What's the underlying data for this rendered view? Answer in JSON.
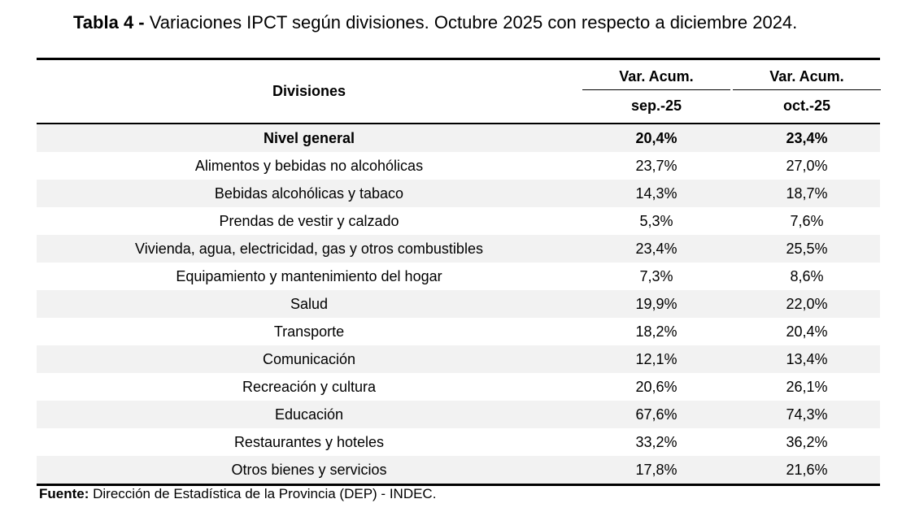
{
  "title": {
    "prefix": "Tabla 4 -",
    "text": "Variaciones IPCT según divisiones. Octubre 2025 con respecto a diciembre 2024."
  },
  "table": {
    "header": {
      "divisions": "Divisiones",
      "col1_top": "Var. Acum.",
      "col1_bottom": "sep.-25",
      "col2_top": "Var. Acum.",
      "col2_bottom": "oct.-25"
    },
    "rows": [
      {
        "name": "Nivel general",
        "sep": "20,4%",
        "oct": "23,4%"
      },
      {
        "name": "Alimentos y bebidas no alcohólicas",
        "sep": "23,7%",
        "oct": "27,0%"
      },
      {
        "name": "Bebidas alcohólicas y tabaco",
        "sep": "14,3%",
        "oct": "18,7%"
      },
      {
        "name": "Prendas de vestir y calzado",
        "sep": "5,3%",
        "oct": "7,6%"
      },
      {
        "name": "Vivienda, agua, electricidad, gas y otros combustibles",
        "sep": "23,4%",
        "oct": "25,5%"
      },
      {
        "name": "Equipamiento y mantenimiento del hogar",
        "sep": "7,3%",
        "oct": "8,6%"
      },
      {
        "name": "Salud",
        "sep": "19,9%",
        "oct": "22,0%"
      },
      {
        "name": "Transporte",
        "sep": "18,2%",
        "oct": "20,4%"
      },
      {
        "name": "Comunicación",
        "sep": "12,1%",
        "oct": "13,4%"
      },
      {
        "name": "Recreación y cultura",
        "sep": "20,6%",
        "oct": "26,1%"
      },
      {
        "name": "Educación",
        "sep": "67,6%",
        "oct": "74,3%"
      },
      {
        "name": "Restaurantes y hoteles",
        "sep": "33,2%",
        "oct": "36,2%"
      },
      {
        "name": "Otros bienes y servicios",
        "sep": "17,8%",
        "oct": "21,6%"
      }
    ]
  },
  "source": {
    "label": "Fuente:",
    "text": "Dirección de Estadística de la Provincia (DEP) - INDEC."
  }
}
